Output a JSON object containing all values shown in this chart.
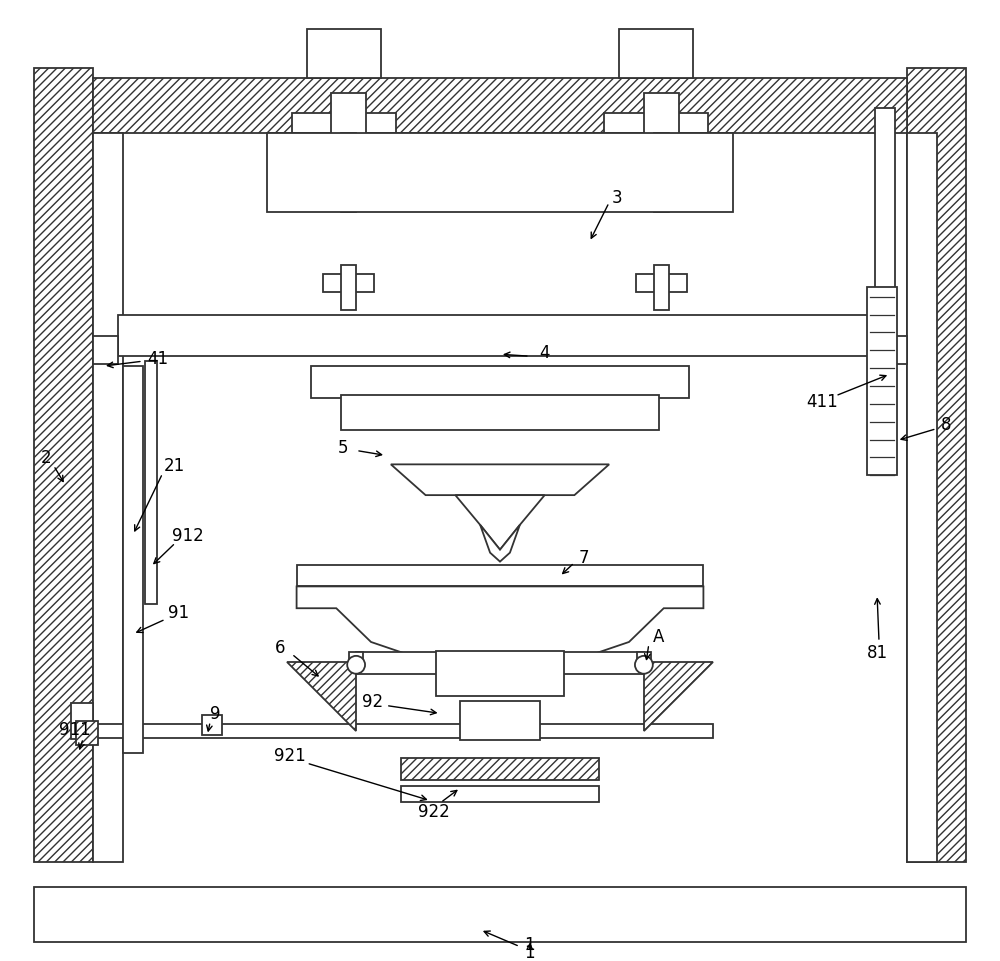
{
  "bg_color": "#ffffff",
  "ec": "#333333",
  "figsize": [
    10.0,
    9.62
  ],
  "dpi": 100
}
